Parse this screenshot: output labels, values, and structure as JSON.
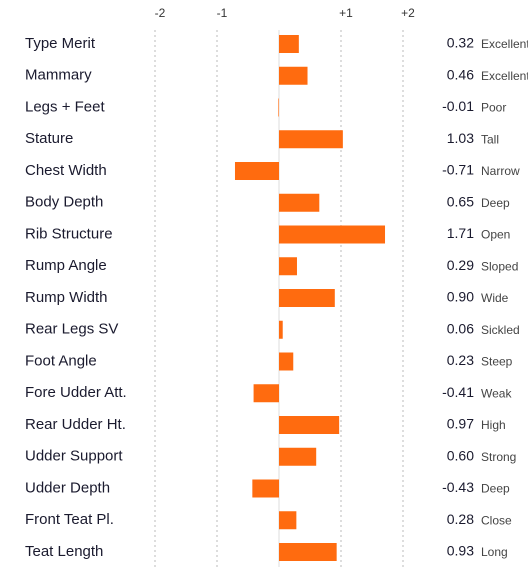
{
  "chart_data": {
    "type": "bar",
    "orientation": "horizontal",
    "categories": [
      "Type Merit",
      "Mammary",
      "Legs + Feet",
      "Stature",
      "Chest Width",
      "Body Depth",
      "Rib Structure",
      "Rump Angle",
      "Rump Width",
      "Rear Legs SV",
      "Foot Angle",
      "Fore Udder Att.",
      "Rear Udder Ht.",
      "Udder Support",
      "Udder Depth",
      "Front Teat Pl.",
      "Teat Length"
    ],
    "values": [
      0.32,
      0.46,
      -0.01,
      1.03,
      -0.71,
      0.65,
      1.71,
      0.29,
      0.9,
      0.06,
      0.23,
      -0.41,
      0.97,
      0.6,
      -0.43,
      0.28,
      0.93
    ],
    "value_labels": [
      "0.32",
      "0.46",
      "-0.01",
      "1.03",
      "-0.71",
      "0.65",
      "1.71",
      "0.29",
      "0.90",
      "0.06",
      "0.23",
      "-0.41",
      "0.97",
      "0.60",
      "-0.43",
      "0.28",
      "0.93"
    ],
    "descriptors": [
      "Excellent",
      "Excellent",
      "Poor",
      "Tall",
      "Narrow",
      "Deep",
      "Open",
      "Sloped",
      "Wide",
      "Sickled",
      "Steep",
      "Weak",
      "High",
      "Strong",
      "Deep",
      "Close",
      "Long"
    ],
    "color": "#ff6b0f",
    "xlim": [
      -2,
      2
    ],
    "xticks": [
      -2,
      -1,
      {
        "value": 1,
        "label": "+1"
      },
      {
        "value": 2,
        "label": "+2"
      }
    ],
    "grid": true
  }
}
